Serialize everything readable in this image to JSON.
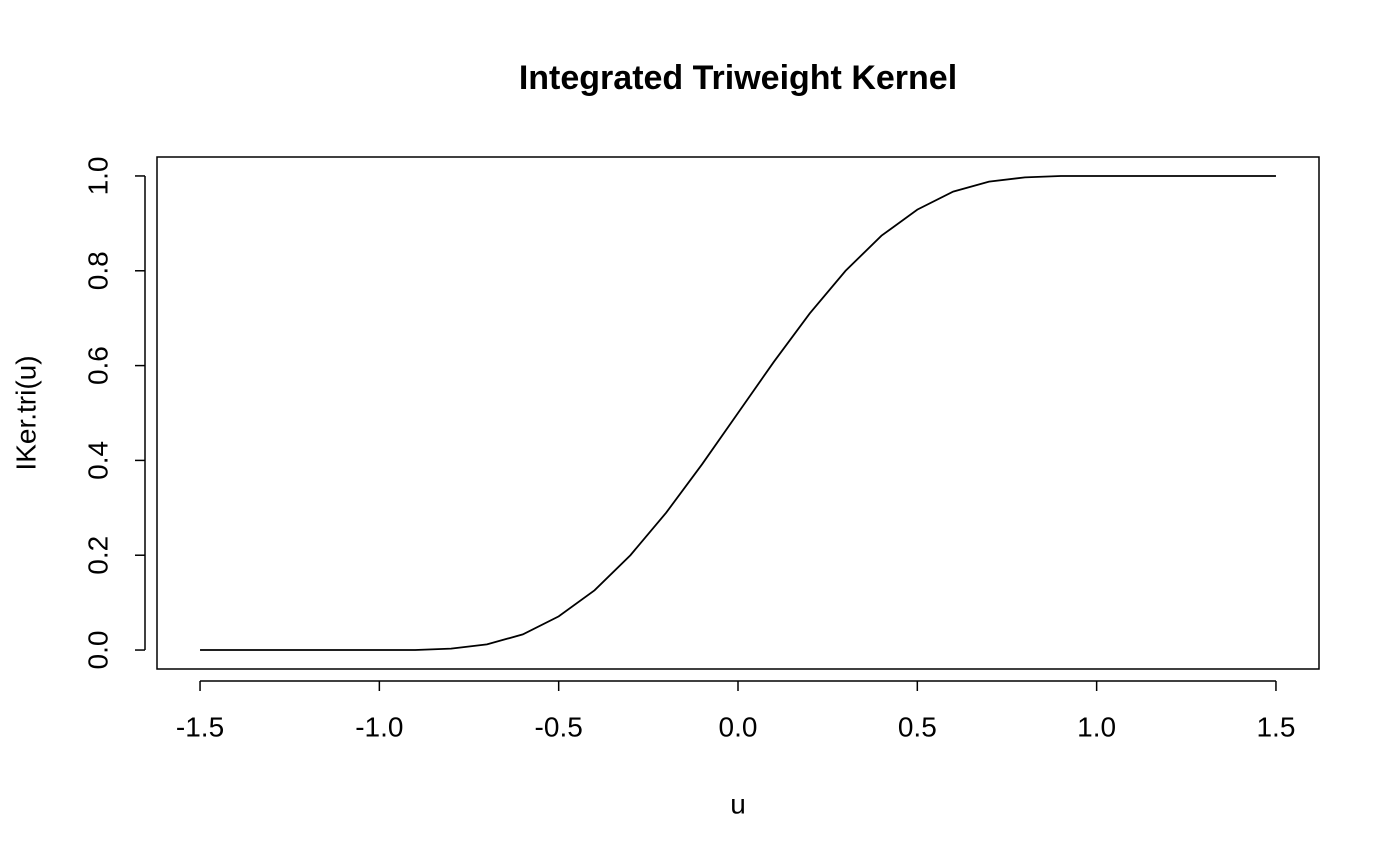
{
  "chart_data": {
    "type": "line",
    "title": "Integrated Triweight Kernel",
    "x_label": "u",
    "y_label": "IKer.tri(u)",
    "x": [
      -1.5,
      -1.4,
      -1.3,
      -1.2,
      -1.1,
      -1.0,
      -0.9,
      -0.8,
      -0.7,
      -0.6,
      -0.5,
      -0.4,
      -0.3,
      -0.2,
      -0.1,
      0.0,
      0.1,
      0.2,
      0.3,
      0.4,
      0.5,
      0.6,
      0.7,
      0.8,
      0.9,
      1.0,
      1.1,
      1.2,
      1.3,
      1.4,
      1.5
    ],
    "series": [
      {
        "color": "#000000",
        "values": [
          0,
          0,
          0,
          0,
          0,
          0,
          0.0,
          0.003,
          0.012,
          0.033,
          0.071,
          0.126,
          0.2,
          0.29,
          0.392,
          0.5,
          0.608,
          0.71,
          0.8,
          0.874,
          0.929,
          0.967,
          0.988,
          0.997,
          1.0,
          1,
          1,
          1,
          1,
          1,
          1
        ]
      }
    ],
    "xlim": [
      -1.62,
      1.62
    ],
    "ylim": [
      -0.04,
      1.04
    ],
    "xticks": [
      -1.5,
      {
        "value": -1,
        "label": "-1.0"
      },
      -0.5,
      {
        "value": 0,
        "label": "0.0"
      },
      0.5,
      {
        "value": 1,
        "label": "1.0"
      },
      1.5
    ],
    "yticks": [
      {
        "value": 0,
        "label": "0.0"
      },
      0.2,
      0.4,
      0.6,
      0.8,
      {
        "value": 1,
        "label": "1.0"
      }
    ],
    "grid": false
  }
}
